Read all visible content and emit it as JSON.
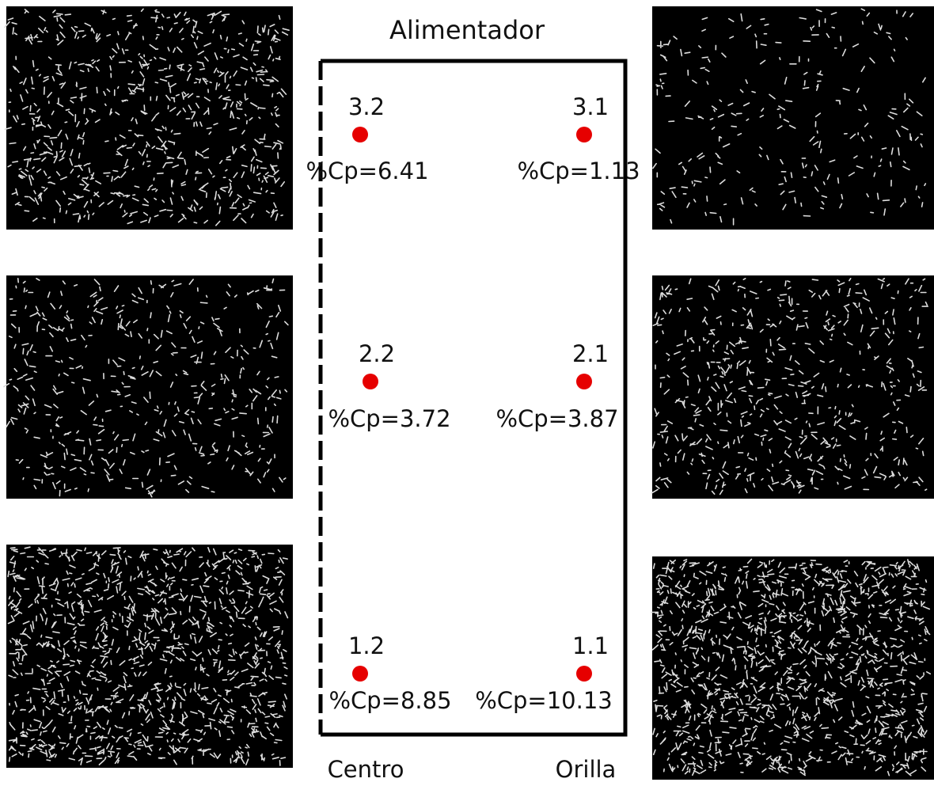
{
  "title": "Alimentador",
  "points": [
    {
      "label": "3.2",
      "cp": "%Cp=6.41"
    },
    {
      "label": "3.1",
      "cp": "%Cp=1.13"
    },
    {
      "label": "2.2",
      "cp": "%Cp=3.72"
    },
    {
      "label": "2.1",
      "cp": "%Cp=3.87"
    },
    {
      "label": "1.2",
      "cp": "%Cp=8.85"
    },
    {
      "label": "1.1",
      "cp": "%Cp=10.13"
    }
  ],
  "axis": {
    "left": "Centro",
    "right": "Orilla"
  }
}
